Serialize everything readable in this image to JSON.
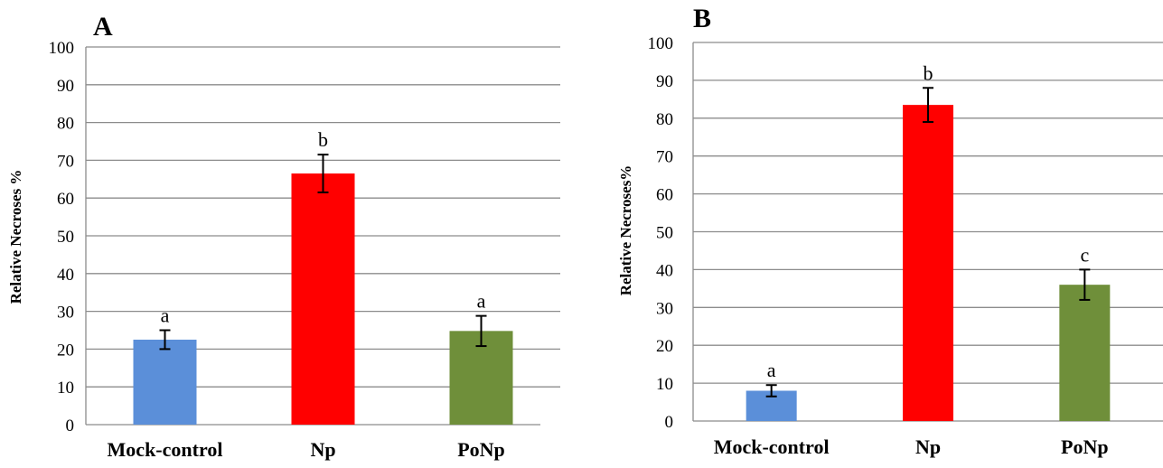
{
  "chart_data": [
    {
      "type": "bar",
      "panel_label": "A",
      "categories": [
        "Mock-control",
        "Np",
        "PoNp"
      ],
      "values": [
        22.5,
        66.5,
        24.8
      ],
      "errors": [
        2.5,
        5.0,
        4.0
      ],
      "significance": [
        "a",
        "b",
        "a"
      ],
      "colors": [
        "#5b8fd9",
        "#ff0000",
        "#6f8f3a"
      ],
      "ylabel": "Relative Necroses %",
      "xlabel": "",
      "ylim": [
        0,
        100
      ],
      "yticks": [
        "0",
        "10",
        "20",
        "30",
        "40",
        "50",
        "60",
        "70",
        "80",
        "90",
        "100"
      ],
      "grid": true
    },
    {
      "type": "bar",
      "panel_label": "B",
      "categories": [
        "Mock-control",
        "Np",
        "PoNp"
      ],
      "values": [
        8.0,
        83.5,
        36.0
      ],
      "errors": [
        1.5,
        4.5,
        4.0
      ],
      "significance": [
        "a",
        "b",
        "c"
      ],
      "colors": [
        "#5b8fd9",
        "#ff0000",
        "#6f8f3a"
      ],
      "ylabel": "Relative Necroses%",
      "xlabel": "",
      "ylim": [
        0,
        100
      ],
      "yticks": [
        "0",
        "10",
        "20",
        "30",
        "40",
        "50",
        "60",
        "70",
        "80",
        "90",
        "100"
      ],
      "grid": true
    }
  ]
}
